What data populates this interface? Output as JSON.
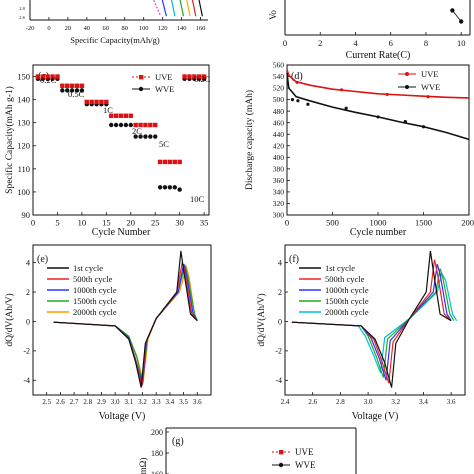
{
  "chart_data": [
    {
      "id": "a",
      "type": "line",
      "xlabel": "Specific Capacity(mAh/g)",
      "xticks": [
        "-20",
        "0",
        "20",
        "40",
        "60",
        "80",
        "100",
        "120",
        "140",
        "160"
      ],
      "xlim": [
        -20,
        170
      ],
      "ylim": [
        2.5,
        3.5
      ],
      "yticks": [
        "2.8",
        "2.6"
      ],
      "series": [
        {
          "color": "#e040e0",
          "x": [
            -10,
            0,
            20,
            40,
            60,
            80,
            100,
            110,
            118
          ],
          "y": [
            3.25,
            3.18,
            3.15,
            3.14,
            3.13,
            3.12,
            3.1,
            3.05,
            2.6
          ]
        },
        {
          "color": "#3030ff",
          "x": [
            110,
            118,
            124
          ],
          "y": [
            3.5,
            3.2,
            2.6
          ]
        },
        {
          "color": "#00c0c0",
          "x": [
            120,
            128,
            133
          ],
          "y": [
            3.5,
            3.2,
            2.6
          ]
        },
        {
          "color": "#22aa22",
          "x": [
            128,
            137,
            142
          ],
          "y": [
            3.5,
            3.2,
            2.6
          ]
        },
        {
          "color": "#ffaa00",
          "x": [
            136,
            144,
            149
          ],
          "y": [
            3.5,
            3.2,
            2.6
          ]
        },
        {
          "color": "#dd2222",
          "x": [
            142,
            150,
            155
          ],
          "y": [
            3.5,
            3.2,
            2.6
          ]
        },
        {
          "color": "#111111",
          "x": [
            150,
            157,
            162
          ],
          "y": [
            3.5,
            3.2,
            2.6
          ]
        }
      ]
    },
    {
      "id": "b",
      "type": "line",
      "xlabel": "Current Rate(C)",
      "ylabel_partial": "Vo",
      "xticks": [
        "0",
        "2",
        "4",
        "6",
        "8",
        "10"
      ],
      "xlim": [
        0,
        10.5
      ],
      "series": [
        {
          "color": "#111111",
          "x": [
            9.5,
            10
          ],
          "y": [
            0.82,
            0.45
          ]
        }
      ]
    },
    {
      "id": "c",
      "type": "scatter",
      "ylabel": "Specific Capacity(mAh g-1)",
      "xlabel": "Cycle Number",
      "xlim": [
        0,
        36
      ],
      "ylim": [
        90,
        155
      ],
      "xticks": [
        "0",
        "5",
        "10",
        "15",
        "20",
        "25",
        "30",
        "35"
      ],
      "yticks": [
        "90",
        "100",
        "110",
        "120",
        "130",
        "140",
        "150"
      ],
      "legend": [
        "UVE",
        "WVE"
      ],
      "legend_position": "top-right",
      "rate_labels": [
        "0.2C",
        "0.5C",
        "1C",
        "2C",
        "5C",
        "10C",
        "0.2C"
      ],
      "series": [
        {
          "name": "UVE",
          "color": "#dd1111",
          "marker": "square",
          "x": [
            1,
            2,
            3,
            4,
            5,
            6,
            7,
            8,
            9,
            10,
            11,
            12,
            13,
            14,
            15,
            16,
            17,
            18,
            19,
            20,
            21,
            22,
            23,
            24,
            25,
            26,
            27,
            28,
            29,
            30,
            31,
            32,
            33,
            34,
            35
          ],
          "y": [
            150,
            150,
            150,
            150,
            150,
            146,
            146,
            146,
            146,
            146,
            139,
            139,
            139,
            139,
            139,
            133,
            133,
            133,
            133,
            133,
            129,
            129,
            129,
            129,
            129,
            113,
            113,
            113,
            113,
            113,
            150,
            150,
            150,
            150,
            150
          ]
        },
        {
          "name": "WVE",
          "color": "#111111",
          "marker": "circle",
          "x": [
            1,
            2,
            3,
            4,
            5,
            6,
            7,
            8,
            9,
            10,
            11,
            12,
            13,
            14,
            15,
            16,
            17,
            18,
            19,
            20,
            21,
            22,
            23,
            24,
            25,
            26,
            27,
            28,
            29,
            30,
            31,
            32,
            33,
            34,
            35
          ],
          "y": [
            149,
            149,
            149,
            149,
            149,
            144,
            144,
            144,
            144,
            144,
            138,
            138,
            138,
            138,
            138,
            129,
            129,
            129,
            129,
            129,
            124,
            124,
            124,
            124,
            124,
            102,
            102,
            102,
            102,
            101,
            149,
            149,
            149,
            149,
            149
          ]
        }
      ]
    },
    {
      "id": "d",
      "type": "line",
      "ylabel": "Discharge capacity (mAh)",
      "xlabel": "Cycle number",
      "xlim": [
        0,
        2000
      ],
      "ylim": [
        300,
        560
      ],
      "xticks": [
        "0",
        "500",
        "1000",
        "1500",
        "200("
      ],
      "yticks": [
        "300",
        "320",
        "340",
        "360",
        "380",
        "400",
        "420",
        "440",
        "460",
        "480",
        "500",
        "520",
        "540",
        "560"
      ],
      "legend": [
        "UVE",
        "WVE"
      ],
      "legend_position": "top-right",
      "series": [
        {
          "name": "UVE",
          "color": "#dd1111",
          "x": [
            0,
            20,
            100,
            250,
            500,
            750,
            1000,
            1250,
            1500,
            1750,
            2000
          ],
          "y": [
            552,
            542,
            531,
            525,
            518,
            514,
            510,
            508,
            506,
            504,
            503
          ]
        },
        {
          "name": "WVE",
          "color": "#111111",
          "x": [
            0,
            20,
            100,
            250,
            500,
            750,
            1000,
            1250,
            1500,
            1750,
            2000
          ],
          "y": [
            546,
            520,
            505,
            498,
            487,
            478,
            470,
            461,
            453,
            443,
            431
          ]
        }
      ]
    },
    {
      "id": "e",
      "type": "line",
      "ylabel": "dQ/dV(Ah/V)",
      "xlabel": "Voltage (V)",
      "xlim": [
        2.4,
        3.7
      ],
      "ylim": [
        -5,
        5.2
      ],
      "xticks": [
        "2.5",
        "2.6",
        "2.7",
        "2.8",
        "2.9",
        "3.0",
        "3.1",
        "3.2",
        "3.3",
        "3.4",
        "3.5",
        "3.6"
      ],
      "yticks": [
        "-4",
        "-2",
        "0",
        "2",
        "4"
      ],
      "legend": [
        "1st cycle",
        "500th cycle",
        "1000th cycle",
        "1500th cycle",
        "2000th cycle"
      ],
      "series": [
        {
          "name": "1st cycle",
          "color": "#111111",
          "x": [
            2.55,
            3.0,
            3.1,
            3.15,
            3.19,
            3.22,
            3.3,
            3.45,
            3.48,
            3.5,
            3.55,
            3.6
          ],
          "y": [
            -0.05,
            -0.3,
            -1.2,
            -2.8,
            -4.5,
            -1.5,
            0.2,
            2.0,
            4.8,
            3.5,
            0.5,
            0.05
          ]
        },
        {
          "name": "500th cycle",
          "color": "#ee2222",
          "x": [
            2.55,
            3.0,
            3.1,
            3.15,
            3.195,
            3.225,
            3.3,
            3.45,
            3.49,
            3.51,
            3.56,
            3.6
          ],
          "y": [
            -0.05,
            -0.3,
            -1.2,
            -2.7,
            -4.4,
            -1.4,
            0.2,
            2.0,
            4.0,
            3.3,
            0.5,
            0.05
          ]
        },
        {
          "name": "1000th cycle",
          "color": "#3030ff",
          "x": [
            2.55,
            3.0,
            3.1,
            3.15,
            3.2,
            3.23,
            3.3,
            3.46,
            3.5,
            3.52,
            3.57,
            3.6
          ],
          "y": [
            -0.05,
            -0.3,
            -1.1,
            -2.6,
            -4.3,
            -1.3,
            0.2,
            2.0,
            3.9,
            3.2,
            0.5,
            0.05
          ]
        },
        {
          "name": "1500th cycle",
          "color": "#22aa22",
          "x": [
            2.55,
            3.0,
            3.1,
            3.16,
            3.2,
            3.235,
            3.3,
            3.46,
            3.51,
            3.53,
            3.58,
            3.6
          ],
          "y": [
            -0.05,
            -0.3,
            -1.0,
            -2.5,
            -4.2,
            -1.2,
            0.2,
            2.0,
            3.8,
            3.1,
            0.5,
            0.05
          ]
        },
        {
          "name": "2000th cycle",
          "color": "#ff9900",
          "x": [
            2.55,
            3.0,
            3.1,
            3.16,
            3.205,
            3.24,
            3.3,
            3.47,
            3.52,
            3.54,
            3.58,
            3.6
          ],
          "y": [
            -0.05,
            -0.3,
            -1.0,
            -2.4,
            -4.1,
            -1.2,
            0.2,
            2.0,
            3.7,
            3.0,
            0.5,
            0.05
          ]
        }
      ]
    },
    {
      "id": "f",
      "type": "line",
      "ylabel": "dQ/dV(Ah/V)",
      "xlabel": "Voltage (V)",
      "xlim": [
        2.4,
        3.7
      ],
      "ylim": [
        -5,
        5.2
      ],
      "xticks": [
        "2.4",
        "2.6",
        "2.8",
        "3.0",
        "3.2",
        "3.4",
        "3.6"
      ],
      "yticks": [
        "-4",
        "-2",
        "0",
        "2",
        "4"
      ],
      "legend": [
        "1st cycle",
        "500th cycle",
        "1000th cycle",
        "1500th cycle",
        "2000th cycle"
      ],
      "series": [
        {
          "name": "1st cycle",
          "color": "#111111",
          "x": [
            2.45,
            2.95,
            3.05,
            3.12,
            3.17,
            3.2,
            3.3,
            3.42,
            3.45,
            3.47,
            3.52,
            3.6
          ],
          "y": [
            -0.05,
            -0.3,
            -1.2,
            -2.8,
            -4.5,
            -1.5,
            0.2,
            2.0,
            4.8,
            3.5,
            0.5,
            0.05
          ]
        },
        {
          "name": "500th cycle",
          "color": "#ee2222",
          "x": [
            2.45,
            2.95,
            3.04,
            3.1,
            3.15,
            3.18,
            3.3,
            3.45,
            3.48,
            3.5,
            3.55,
            3.6
          ],
          "y": [
            -0.05,
            -0.3,
            -1.2,
            -2.7,
            -4.2,
            -1.4,
            0.2,
            2.0,
            4.2,
            3.3,
            0.5,
            0.05
          ]
        },
        {
          "name": "1000th cycle",
          "color": "#3030ff",
          "x": [
            2.45,
            2.95,
            3.02,
            3.08,
            3.13,
            3.16,
            3.3,
            3.47,
            3.5,
            3.52,
            3.57,
            3.6
          ],
          "y": [
            -0.05,
            -0.3,
            -1.1,
            -2.5,
            -4.0,
            -1.3,
            0.2,
            2.0,
            3.9,
            3.2,
            0.5,
            0.05
          ]
        },
        {
          "name": "1500th cycle",
          "color": "#22aa22",
          "x": [
            2.45,
            2.95,
            3.0,
            3.06,
            3.11,
            3.14,
            3.3,
            3.49,
            3.52,
            3.54,
            3.59,
            3.62
          ],
          "y": [
            -0.05,
            -0.3,
            -1.0,
            -2.4,
            -3.8,
            -1.2,
            0.2,
            2.0,
            3.6,
            3.0,
            0.5,
            0.05
          ]
        },
        {
          "name": "2000th cycle",
          "color": "#00c0d0",
          "x": [
            2.45,
            2.93,
            2.98,
            3.04,
            3.09,
            3.12,
            3.3,
            3.5,
            3.53,
            3.56,
            3.61,
            3.64
          ],
          "y": [
            -0.05,
            -0.3,
            -1.0,
            -2.3,
            -3.5,
            -1.1,
            0.2,
            2.0,
            3.3,
            2.8,
            0.5,
            0.05
          ]
        }
      ]
    },
    {
      "id": "g",
      "type": "scatter",
      "ylabel_partial": "mΩ)",
      "ylim": [
        140,
        200
      ],
      "yticks": [
        "200",
        "180",
        "160"
      ],
      "legend": [
        "UVE",
        "WVE"
      ],
      "legend_position": "top-right"
    }
  ]
}
